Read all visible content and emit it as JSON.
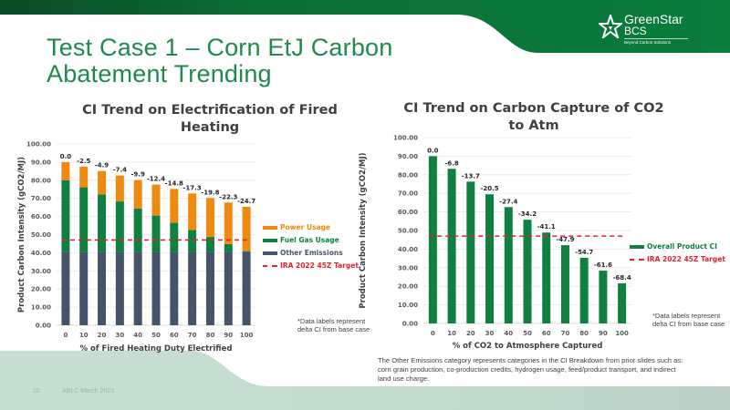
{
  "slide": {
    "title_line1": "Test Case 1 – Corn EtJ Carbon",
    "title_line2": "Abatement Trending",
    "page_number": "20",
    "footer_text": "ABLC March 2023",
    "body_text": "The Other Emissions category represents categories in the CI Breakdown from prior slides such as: corn grain production, co-production credits, hydrogen usage, feed/product transport, and indirect land use charge.",
    "colors": {
      "brand_green": "#1e8a4c",
      "header_green_dark": "#0b4a26",
      "header_green": "#0a7a3a",
      "footer_mint": "#c2dccd"
    }
  },
  "logo": {
    "icon": "star-icon",
    "name_line1": "GreenStar",
    "name_line2": "BCS",
    "tagline": "Beyond Carbon Solutions"
  },
  "chart_data": [
    {
      "type": "bar",
      "stacked": true,
      "title_line1": "CI Trend on Electrification of Fired",
      "title_line2": "Heating",
      "xlabel": "% of Fired Heating Duty Electrified",
      "ylabel": "Product Carbon Intensity (gCO2/MJ)",
      "ylim": [
        0,
        100
      ],
      "yticks": [
        "0.00",
        "10.00",
        "20.00",
        "30.00",
        "40.00",
        "50.00",
        "60.00",
        "70.00",
        "80.00",
        "90.00",
        "100.00"
      ],
      "categories": [
        "0",
        "10",
        "20",
        "30",
        "40",
        "50",
        "60",
        "70",
        "80",
        "90",
        "100"
      ],
      "grid": true,
      "series": [
        {
          "name": "Other Emissions",
          "color": "#44546a",
          "values": [
            40.5,
            40.5,
            40.5,
            40.5,
            40.5,
            40.5,
            40.5,
            40.5,
            40.5,
            40.5,
            40.5
          ]
        },
        {
          "name": "Fuel Gas Usage",
          "color": "#0f8040",
          "values": [
            39.5,
            35.6,
            31.7,
            27.8,
            23.9,
            20.0,
            16.0,
            12.1,
            8.2,
            4.3,
            0.4
          ]
        },
        {
          "name": "Power Usage",
          "color": "#ee8a10",
          "values": [
            10.0,
            11.4,
            12.9,
            14.3,
            15.7,
            17.1,
            18.7,
            20.1,
            21.5,
            22.9,
            24.4
          ]
        }
      ],
      "data_labels": [
        "0.0",
        "-2.5",
        "-4.9",
        "-7.4",
        "-9.9",
        "-12.4",
        "-14.8",
        "-17.3",
        "-19.8",
        "-22.3",
        "-24.7"
      ],
      "target_line": {
        "name": "IRA 2022 45Z Target",
        "value": 47.0,
        "color": "#e0242e"
      },
      "legend": [
        {
          "label": "Power Usage",
          "color": "#ee8a10",
          "kind": "bar"
        },
        {
          "label": "Fuel Gas Usage",
          "color": "#0f8040",
          "kind": "bar"
        },
        {
          "label": "Other Emissions",
          "color": "#44546a",
          "kind": "bar"
        },
        {
          "label": "IRA 2022 45Z Target",
          "color": "#e0242e",
          "kind": "dash"
        }
      ],
      "legend_position": "right",
      "footnote": "*Data labels represent delta CI from base case"
    },
    {
      "type": "bar",
      "title_line1": "CI Trend on Carbon Capture of CO2",
      "title_line2": "to Atm",
      "xlabel": "% of CO2 to Atmosphere Captured",
      "ylabel": "Product Carbon Intensity (gCO2/MJ)",
      "ylim": [
        0,
        100
      ],
      "yticks": [
        "0.00",
        "10.00",
        "20.00",
        "30.00",
        "40.00",
        "50.00",
        "60.00",
        "70.00",
        "80.00",
        "90.00",
        "100.00"
      ],
      "categories": [
        "0",
        "10",
        "20",
        "30",
        "40",
        "50",
        "60",
        "70",
        "80",
        "90",
        "100"
      ],
      "grid": true,
      "series": [
        {
          "name": "Overall Product CI",
          "color": "#0f8040",
          "values": [
            90.0,
            83.2,
            76.3,
            69.5,
            62.6,
            55.8,
            48.9,
            42.1,
            35.3,
            28.4,
            21.6
          ]
        }
      ],
      "data_labels": [
        "0.0",
        "-6.8",
        "-13.7",
        "-20.5",
        "-27.4",
        "-34.2",
        "-41.1",
        "-47.9",
        "-54.7",
        "-61.6",
        "-68.4"
      ],
      "target_line": {
        "name": "IRA 2022 45Z Target",
        "value": 47.0,
        "color": "#e0242e"
      },
      "legend": [
        {
          "label": "Overall Product CI",
          "color": "#0f8040",
          "kind": "bar"
        },
        {
          "label": "IRA 2022 45Z Target",
          "color": "#e0242e",
          "kind": "dash"
        }
      ],
      "legend_position": "right",
      "footnote": "*Data labels represent delta CI from base case"
    }
  ]
}
